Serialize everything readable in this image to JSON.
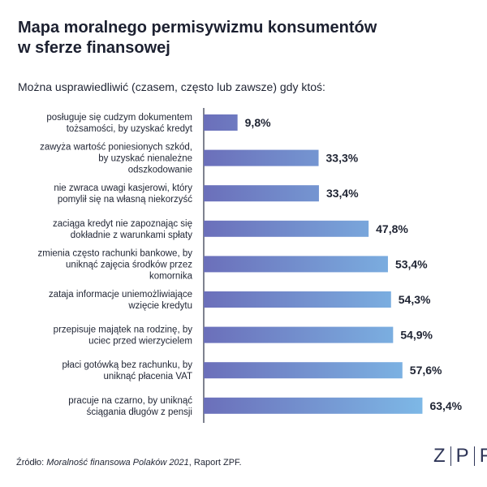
{
  "title": {
    "line1": "Mapa moralnego permisywizmu konsumentów",
    "line2": "w sferze finansowej"
  },
  "subtitle": "Można usprawiedliwić (czasem, często lub zawsze) gdy ktoś:",
  "footer": {
    "prefix": "Źródło: ",
    "source_title": "Moralność finansowa Polaków 2021",
    "suffix": ", Raport ZPF."
  },
  "logo": {
    "letters": [
      "Z",
      "P",
      "F"
    ]
  },
  "colors": {
    "bar_start": "#6b6fba",
    "bar_end": "#7ebbe8",
    "axis": "#2a2f45",
    "text": "#1f2433"
  },
  "chart_data": {
    "type": "bar",
    "orientation": "horizontal",
    "title": "Mapa moralnego permisywizmu konsumentów w sferze finansowej",
    "subtitle": "Można usprawiedliwić (czasem, często lub zawsze) gdy ktoś:",
    "unit": "%",
    "categories": [
      [
        "posługuje się cudzym dokumentem",
        "tożsamości, by uzyskać kredyt"
      ],
      [
        "zawyża wartość poniesionych szkód,",
        "by uzyskać nienależne",
        "odszkodowanie"
      ],
      [
        "nie zwraca uwagi kasjerowi, który",
        "pomylił się na własną niekorzyść"
      ],
      [
        "zaciąga kredyt nie zapoznając się",
        "dokładnie z warunkami spłaty"
      ],
      [
        "zmienia często rachunki bankowe, by",
        "uniknąć zajęcia środków przez",
        "komornika"
      ],
      [
        "zataja informacje uniemożliwiające",
        "wzięcie kredytu"
      ],
      [
        "przepisuje majątek na rodzinę, by",
        "uciec przed wierzycielem"
      ],
      [
        "płaci gotówką bez rachunku, by",
        "uniknąć płacenia VAT"
      ],
      [
        "pracuje na czarno, by uniknąć",
        "ściągania długów z pensji"
      ]
    ],
    "values": [
      9.8,
      33.3,
      33.4,
      47.8,
      53.4,
      54.3,
      54.9,
      57.6,
      63.4
    ],
    "value_labels": [
      "9,8%",
      "33,3%",
      "33,4%",
      "47,8%",
      "53,4%",
      "54,3%",
      "54,9%",
      "57,6%",
      "63,4%"
    ],
    "xlim": [
      0,
      100
    ],
    "grid": false,
    "legend": "none"
  }
}
